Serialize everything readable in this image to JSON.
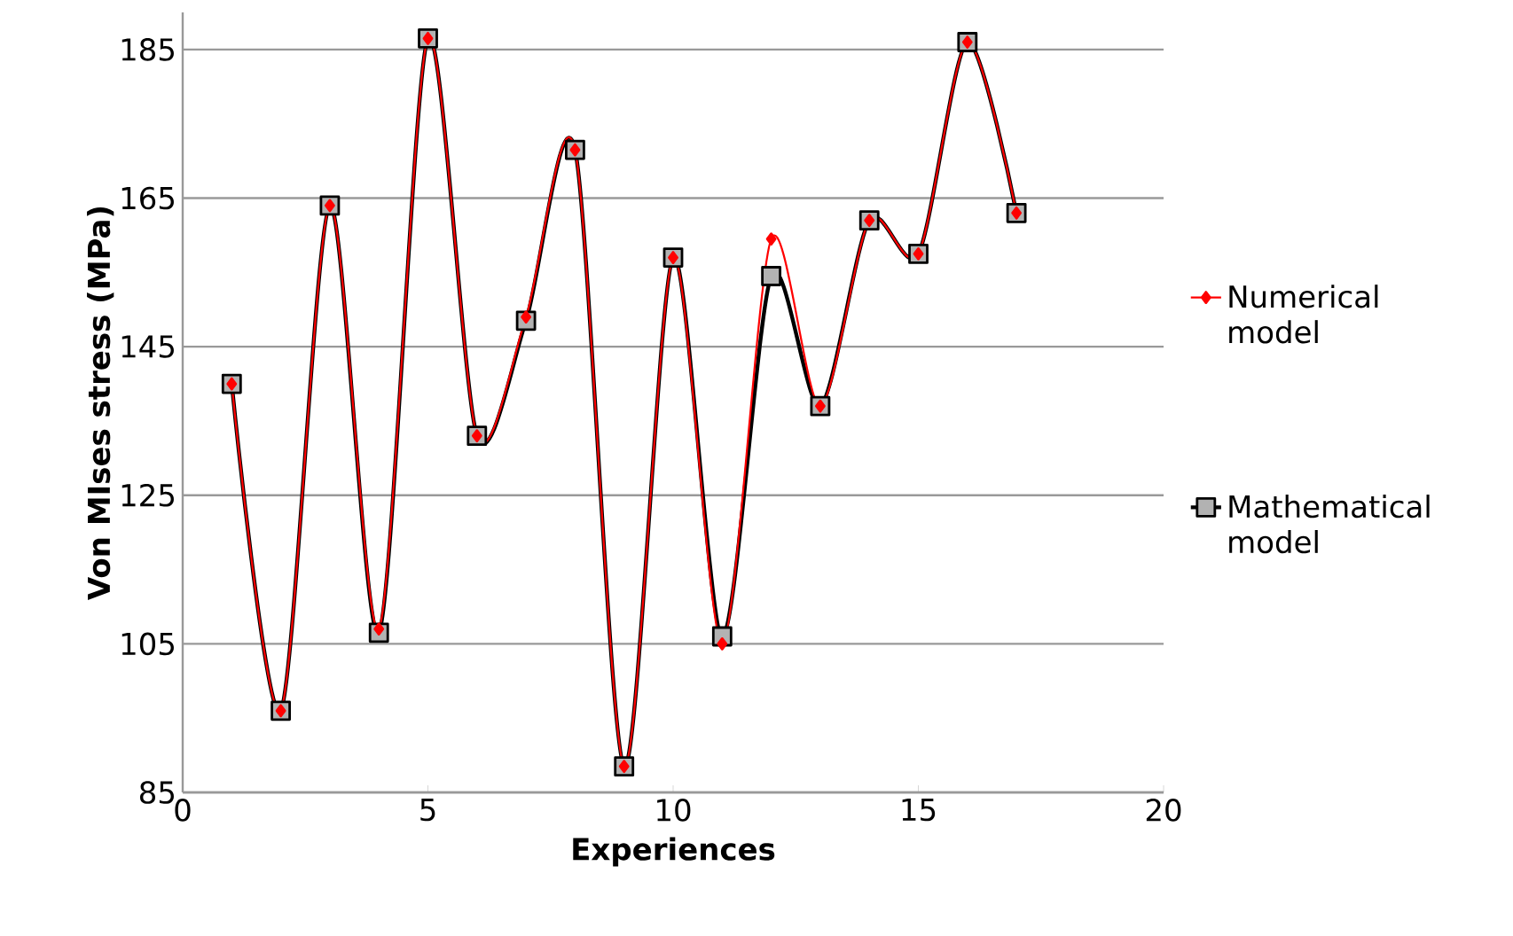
{
  "chart_data": {
    "type": "line",
    "xlabel": "Experiences",
    "ylabel": "Von MIses stress (MPa)",
    "x": [
      1,
      2,
      3,
      4,
      5,
      6,
      7,
      8,
      9,
      10,
      11,
      12,
      13,
      14,
      15,
      16,
      17
    ],
    "series": [
      {
        "name": "Numerical model",
        "color": "#ff0000",
        "marker": "diamond",
        "values": [
          140,
          96,
          164,
          107,
          186.5,
          133,
          149,
          171.5,
          88.5,
          157,
          105,
          159.5,
          137,
          162,
          157.5,
          186,
          163
        ]
      },
      {
        "name": "Mathematical model",
        "color": "#000000",
        "marker": "square",
        "values": [
          140,
          96,
          164,
          106.5,
          186.5,
          133,
          148.5,
          171.5,
          88.5,
          157,
          106,
          154.5,
          137,
          162,
          157.5,
          186,
          163
        ]
      }
    ],
    "xlim": [
      0,
      20
    ],
    "ylim": [
      85,
      190
    ],
    "xticks": [
      0,
      5,
      10,
      15,
      20
    ],
    "yticks": [
      85,
      105,
      125,
      145,
      165,
      185
    ],
    "grid": "y",
    "legend": "right",
    "line_style": "solid"
  }
}
